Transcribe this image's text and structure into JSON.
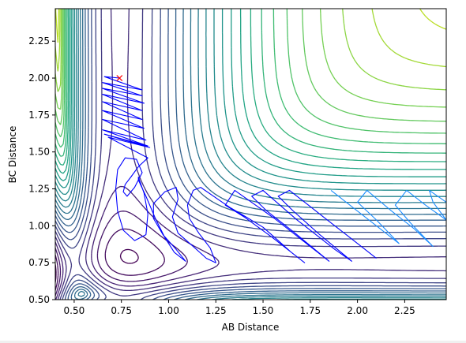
{
  "chart_data": {
    "type": "contour",
    "title": "",
    "xlabel": "AB Distance",
    "ylabel": "BC Distance",
    "xlim": [
      0.4,
      2.47
    ],
    "ylim": [
      0.5,
      2.47
    ],
    "xticks": [
      "0.50",
      "0.75",
      "1.00",
      "1.25",
      "1.50",
      "1.75",
      "2.00",
      "2.25"
    ],
    "yticks": [
      "0.50",
      "0.75",
      "1.00",
      "1.25",
      "1.50",
      "1.75",
      "2.00",
      "2.25"
    ],
    "xtick_values": [
      0.5,
      0.75,
      1.0,
      1.25,
      1.5,
      1.75,
      2.0,
      2.25
    ],
    "ytick_values": [
      0.5,
      0.75,
      1.0,
      1.25,
      1.5,
      1.75,
      2.0,
      2.25
    ],
    "grid": false,
    "colormap": "viridis",
    "contour_levels": 30,
    "start_marker": {
      "x": 0.74,
      "y": 2.0,
      "symbol": "x",
      "color": "#ff0000"
    },
    "trajectory_color": "#0000ff",
    "trajectory_light_color": "#1a8cff",
    "trajectory_points": [
      [
        0.74,
        2.0
      ],
      [
        0.66,
        2.01
      ],
      [
        0.86,
        1.92
      ],
      [
        0.65,
        1.97
      ],
      [
        0.86,
        1.88
      ],
      [
        0.65,
        1.93
      ],
      [
        0.87,
        1.83
      ],
      [
        0.65,
        1.89
      ],
      [
        0.86,
        1.78
      ],
      [
        0.65,
        1.84
      ],
      [
        0.86,
        1.72
      ],
      [
        0.65,
        1.78
      ],
      [
        0.87,
        1.66
      ],
      [
        0.65,
        1.72
      ],
      [
        0.88,
        1.58
      ],
      [
        0.65,
        1.65
      ],
      [
        0.89,
        1.54
      ],
      [
        0.66,
        1.62
      ],
      [
        0.9,
        1.53
      ],
      [
        0.68,
        1.6
      ],
      [
        0.89,
        1.46
      ],
      [
        0.84,
        1.4
      ],
      [
        0.8,
        1.33
      ],
      [
        0.77,
        1.28
      ],
      [
        0.76,
        1.23
      ],
      [
        0.78,
        1.2
      ],
      [
        0.82,
        1.26
      ],
      [
        0.86,
        1.36
      ],
      [
        0.83,
        1.45
      ],
      [
        0.77,
        1.46
      ],
      [
        0.73,
        1.38
      ],
      [
        0.72,
        1.25
      ],
      [
        0.73,
        1.1
      ],
      [
        0.76,
        0.97
      ],
      [
        0.82,
        0.9
      ],
      [
        0.88,
        0.94
      ],
      [
        0.89,
        1.08
      ],
      [
        0.87,
        1.22
      ],
      [
        0.84,
        1.33
      ],
      [
        0.84,
        1.31
      ],
      [
        0.88,
        1.2
      ],
      [
        0.93,
        1.05
      ],
      [
        0.98,
        0.92
      ],
      [
        1.03,
        0.82
      ],
      [
        1.09,
        0.76
      ],
      [
        1.04,
        0.84
      ],
      [
        0.97,
        0.94
      ],
      [
        0.92,
        1.05
      ],
      [
        0.92,
        1.15
      ],
      [
        0.98,
        1.23
      ],
      [
        1.04,
        1.26
      ],
      [
        1.05,
        1.18
      ],
      [
        1.02,
        1.06
      ],
      [
        1.05,
        0.95
      ],
      [
        1.13,
        0.86
      ],
      [
        1.2,
        0.78
      ],
      [
        1.25,
        0.75
      ],
      [
        1.22,
        0.85
      ],
      [
        1.16,
        0.95
      ],
      [
        1.11,
        1.05
      ],
      [
        1.1,
        1.14
      ],
      [
        1.13,
        1.24
      ],
      [
        1.17,
        1.26
      ],
      [
        1.26,
        1.18
      ],
      [
        1.33,
        1.12
      ],
      [
        1.41,
        1.06
      ],
      [
        1.5,
        0.99
      ],
      [
        1.58,
        0.9
      ],
      [
        1.65,
        0.82
      ],
      [
        1.72,
        0.75
      ],
      [
        1.55,
        0.92
      ],
      [
        1.4,
        1.06
      ],
      [
        1.3,
        1.14
      ],
      [
        1.35,
        1.24
      ],
      [
        1.46,
        1.14
      ],
      [
        1.56,
        1.05
      ],
      [
        1.65,
        0.96
      ],
      [
        1.75,
        0.86
      ],
      [
        1.85,
        0.76
      ],
      [
        1.66,
        0.96
      ],
      [
        1.52,
        1.1
      ],
      [
        1.44,
        1.2
      ],
      [
        1.5,
        1.24
      ],
      [
        1.58,
        1.15
      ],
      [
        1.68,
        1.04
      ],
      [
        1.78,
        0.94
      ],
      [
        1.88,
        0.84
      ],
      [
        1.97,
        0.76
      ],
      [
        1.8,
        0.94
      ],
      [
        1.66,
        1.1
      ],
      [
        1.58,
        1.2
      ],
      [
        1.64,
        1.24
      ],
      [
        1.74,
        1.14
      ],
      [
        1.84,
        1.04
      ],
      [
        1.94,
        0.94
      ],
      [
        2.04,
        0.84
      ],
      [
        2.1,
        0.78
      ]
    ],
    "trajectory_light_points": [
      [
        1.86,
        1.24
      ],
      [
        1.98,
        1.12
      ],
      [
        2.1,
        1.0
      ],
      [
        2.22,
        0.88
      ],
      [
        2.1,
        1.04
      ],
      [
        2.0,
        1.16
      ],
      [
        2.05,
        1.24
      ],
      [
        2.18,
        1.1
      ],
      [
        2.3,
        0.98
      ],
      [
        2.4,
        0.86
      ],
      [
        2.28,
        1.02
      ],
      [
        2.2,
        1.14
      ],
      [
        2.26,
        1.24
      ],
      [
        2.36,
        1.14
      ],
      [
        2.47,
        1.04
      ],
      [
        2.4,
        1.16
      ],
      [
        2.38,
        1.24
      ],
      [
        2.47,
        1.16
      ]
    ]
  }
}
